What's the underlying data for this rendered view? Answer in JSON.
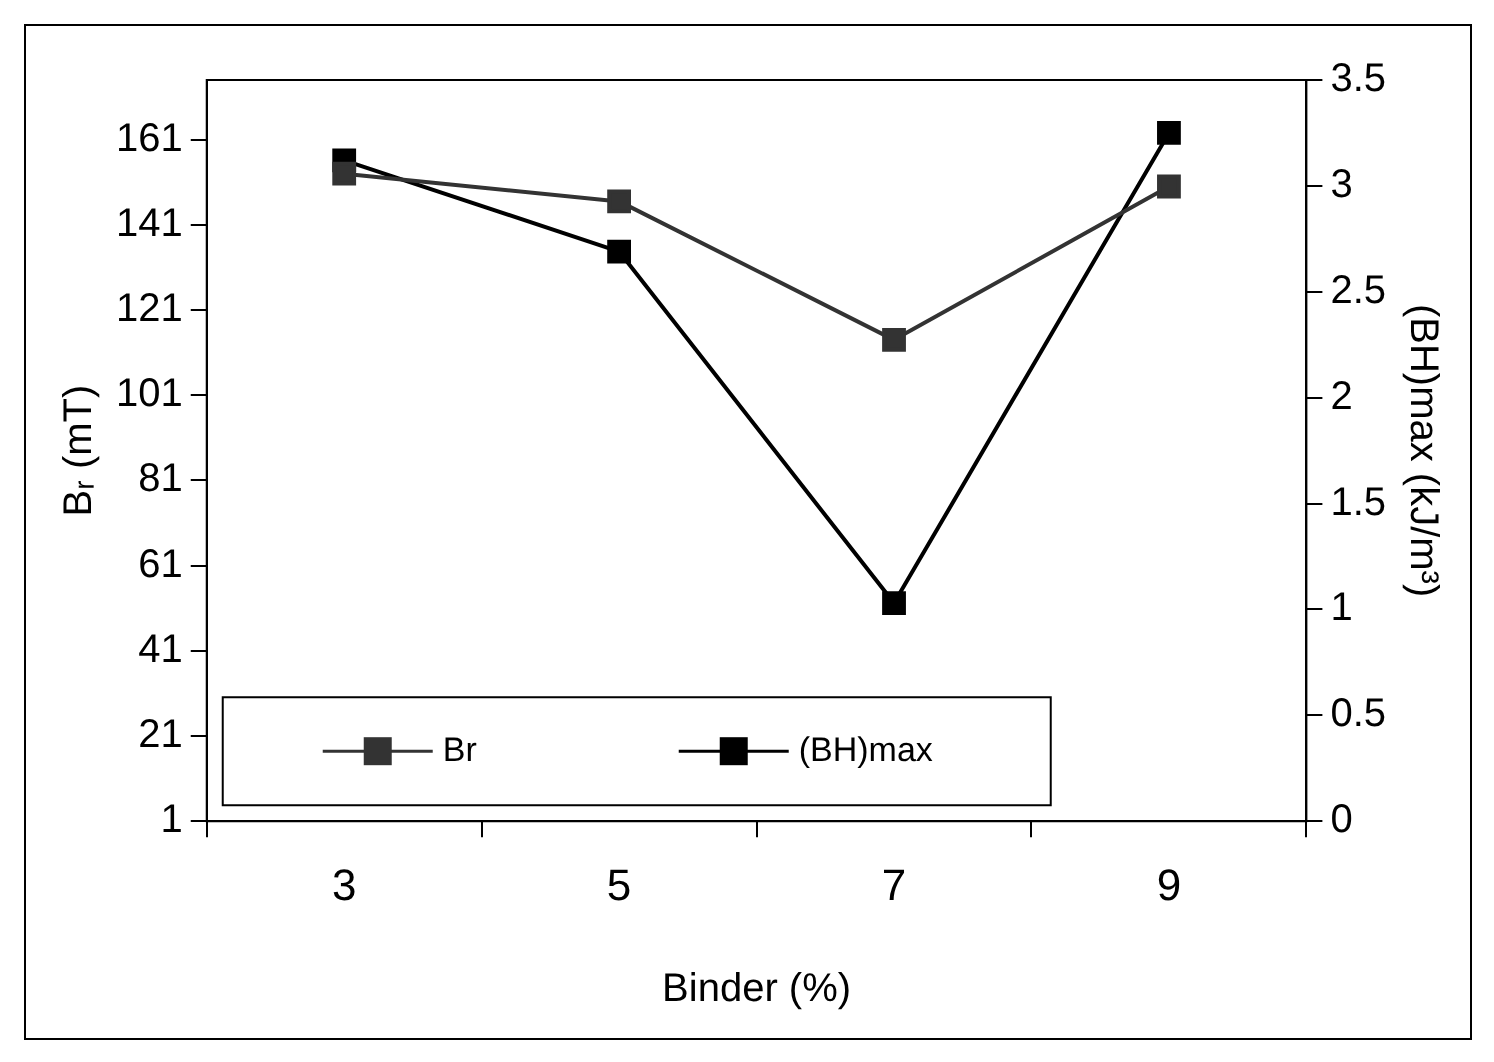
{
  "chart_data": {
    "type": "line",
    "xlabel": "Binder (%)",
    "ylabel": "Bᵣ (mT)",
    "y2label": "(BH)max (kJ/m³)",
    "categories": [
      "3",
      "5",
      "7",
      "9"
    ],
    "series": [
      {
        "name": "Br",
        "color": "#333333",
        "values": [
          153,
          146.5,
          114,
          150
        ]
      },
      {
        "name": "(BH)max",
        "color": "#000000",
        "values": [
          3.12,
          2.69,
          1.03,
          3.25
        ],
        "axis": "y2"
      }
    ],
    "ylim": [
      1,
      175
    ],
    "yticks": [
      1,
      21,
      41,
      61,
      81,
      101,
      121,
      141,
      161
    ],
    "y2lim": [
      0,
      3.5
    ],
    "y2ticks": [
      0,
      0.5,
      1,
      1.5,
      2,
      2.5,
      3,
      3.5
    ],
    "grid": false,
    "legend": "bottom left",
    "marker": "square",
    "line_style": "solid"
  }
}
